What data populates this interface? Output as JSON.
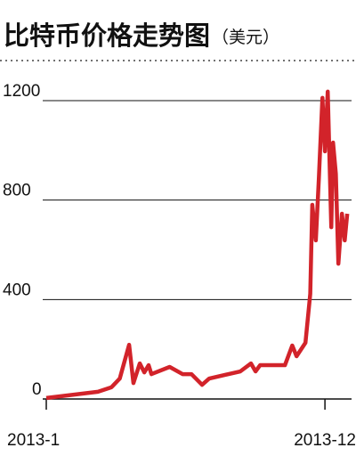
{
  "chart_data": {
    "type": "line",
    "title": "比特币价格走势图",
    "subtitle": "（美元）",
    "x": [
      1,
      3.04,
      3.57,
      3.9,
      4.27,
      4.44,
      4.69,
      4.87,
      5.04,
      5.15,
      5.87,
      6.38,
      6.73,
      7.15,
      7.43,
      8.66,
      9.08,
      9.26,
      9.44,
      10.42,
      10.71,
      10.88,
      11.23,
      11.42,
      11.5,
      11.64,
      11.76,
      11.9,
      12.0,
      12.11,
      12.25,
      12.32,
      12.43,
      12.53,
      12.67,
      12.78,
      12.88
    ],
    "values": [
      4,
      29,
      47,
      82,
      218,
      64,
      143,
      107,
      136,
      100,
      129,
      100,
      100,
      57,
      82,
      111,
      143,
      111,
      136,
      136,
      215,
      172,
      226,
      423,
      781,
      638,
      888,
      1211,
      996,
      1236,
      691,
      1031,
      906,
      544,
      745,
      638,
      745
    ],
    "color": "#d2232a",
    "xlim": [
      1,
      13.05
    ],
    "xticks": [
      {
        "value": 1,
        "label": "2013-1"
      },
      {
        "value": 12,
        "label": "2013-12"
      }
    ],
    "ylim": [
      0,
      1250
    ],
    "yticks": [
      0,
      400,
      800,
      1200
    ],
    "grid": true
  }
}
